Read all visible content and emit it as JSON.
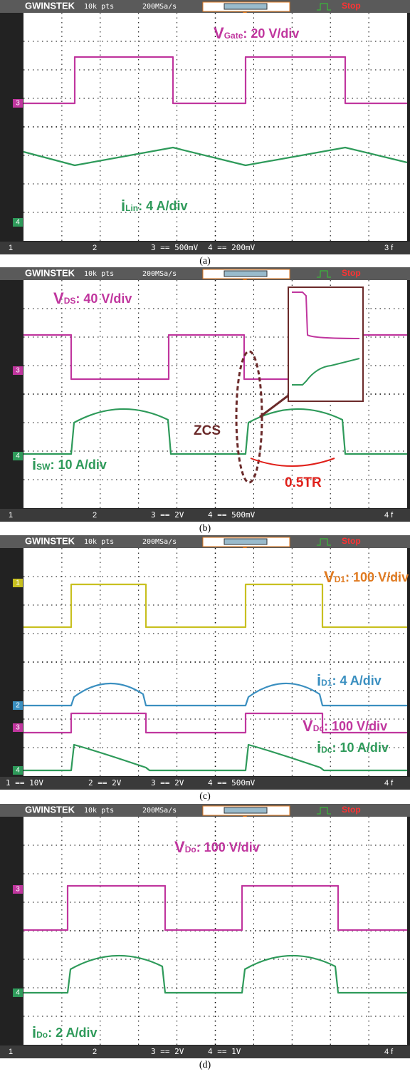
{
  "panels": [
    {
      "header": {
        "brand": "GWINSTEK",
        "points": "10k pts",
        "rate": "200MSa/s",
        "status": "Stop"
      },
      "markers": [
        "3",
        "4"
      ],
      "footer": {
        "left": [
          "1",
          "2"
        ],
        "channels": [
          "3 == 500mV",
          "4 == 200mV"
        ],
        "right": "3 f"
      },
      "annotations": [
        {
          "main": "V",
          "sub": "Gate",
          "rest": ": 20 V/div"
        },
        {
          "main": "i",
          "sub": "Lin",
          "rest": ": 4 A/div"
        }
      ],
      "caption": "(a)"
    },
    {
      "header": {
        "brand": "GWINSTEK",
        "points": "10k pts",
        "rate": "200MSa/s",
        "status": "Stop"
      },
      "markers": [
        "3",
        "4"
      ],
      "footer": {
        "left": [
          "1",
          "2"
        ],
        "channels": [
          "3 == 2V",
          "4 == 500mV"
        ],
        "right": "4 f"
      },
      "annotations": [
        {
          "main": "V",
          "sub": "DS",
          "rest": ": 40 V/div"
        },
        {
          "main": "i",
          "sub": "SW",
          "rest": ": 10 A/div"
        },
        {
          "main": "ZCS",
          "sub": "",
          "rest": ""
        },
        {
          "main": "0.5TR",
          "sub": "",
          "rest": ""
        }
      ],
      "caption": "(b)"
    },
    {
      "header": {
        "brand": "GWINSTEK",
        "points": "10k pts",
        "rate": "200MSa/s",
        "status": "Stop"
      },
      "markers": [
        "1",
        "2",
        "3",
        "4"
      ],
      "footer": {
        "left": [],
        "channels": [
          "1 == 10V",
          "2 == 2V",
          "3 == 2V",
          "4 == 500mV"
        ],
        "right": "4 f"
      },
      "annotations": [
        {
          "main": "V",
          "sub": "D1",
          "rest": ": 100 V/div"
        },
        {
          "main": "i",
          "sub": "D1",
          "rest": ": 4 A/div"
        },
        {
          "main": "V",
          "sub": "Dc",
          "rest": ": 100 V/div"
        },
        {
          "main": "i",
          "sub": "Dc",
          "rest": ": 10 A/div"
        }
      ],
      "caption": "(c)"
    },
    {
      "header": {
        "brand": "GWINSTEK",
        "points": "10k pts",
        "rate": "200MSa/s",
        "status": "Stop"
      },
      "markers": [
        "3",
        "4"
      ],
      "footer": {
        "left": [
          "1",
          "2"
        ],
        "channels": [
          "3 == 2V",
          "4 == 1V"
        ],
        "right": "4 f"
      },
      "annotations": [
        {
          "main": "V",
          "sub": "Do",
          "rest": ": 100 V/div"
        },
        {
          "main": "i",
          "sub": "Do",
          "rest": ": 2 A/div"
        }
      ],
      "caption": "(d)"
    }
  ]
}
